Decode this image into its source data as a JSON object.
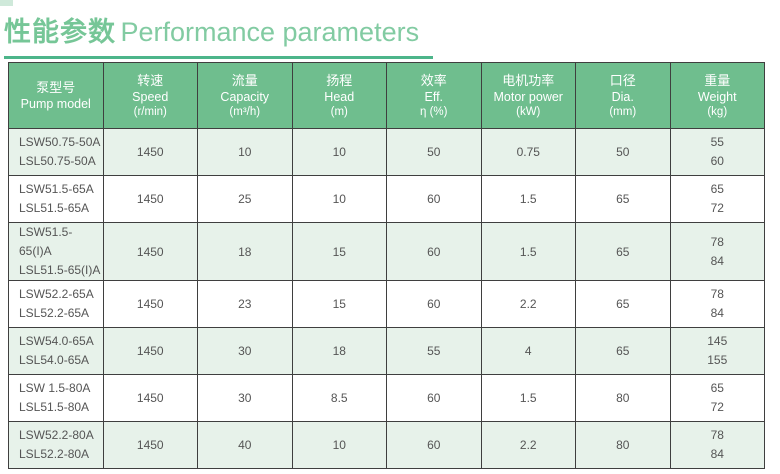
{
  "page": {
    "title_cn": "性能参数",
    "title_en": "Performance parameters",
    "accent_green": "#6fbe8e",
    "row_green": "#e7f2ea",
    "title_green": "#82cba2",
    "underline_green": "#4db58a"
  },
  "table": {
    "columns": [
      {
        "cn": "泵型号",
        "en": "Pump model",
        "unit": ""
      },
      {
        "cn": "转速",
        "en": "Speed",
        "unit": "(r/min)"
      },
      {
        "cn": "流量",
        "en": "Capacity",
        "unit": "(m³/h)"
      },
      {
        "cn": "扬程",
        "en": "Head",
        "unit": "(m)"
      },
      {
        "cn": "效率",
        "en": "Eff.",
        "unit": "η (%)"
      },
      {
        "cn": "电机功率",
        "en": "Motor power",
        "unit": "(kW)"
      },
      {
        "cn": "口径",
        "en": "Dia.",
        "unit": "(mm)"
      },
      {
        "cn": "重量",
        "en": "Weight",
        "unit": "(kg)"
      }
    ],
    "rows": [
      {
        "models": [
          "LSW50.75-50A",
          "LSL50.75-50A"
        ],
        "speed": "1450",
        "capacity": "10",
        "head": "10",
        "eff": "50",
        "power": "0.75",
        "dia": "50",
        "weights": [
          "55",
          "60"
        ]
      },
      {
        "models": [
          "LSW51.5-65A",
          "LSL51.5-65A"
        ],
        "speed": "1450",
        "capacity": "25",
        "head": "10",
        "eff": "60",
        "power": "1.5",
        "dia": "65",
        "weights": [
          "65",
          "72"
        ]
      },
      {
        "models": [
          "LSW51.5-65(I)A",
          "LSL51.5-65(I)A"
        ],
        "speed": "1450",
        "capacity": "18",
        "head": "15",
        "eff": "60",
        "power": "1.5",
        "dia": "65",
        "weights": [
          "78",
          "84"
        ]
      },
      {
        "models": [
          "LSW52.2-65A",
          "LSL52.2-65A"
        ],
        "speed": "1450",
        "capacity": "23",
        "head": "15",
        "eff": "60",
        "power": "2.2",
        "dia": "65",
        "weights": [
          "78",
          "84"
        ]
      },
      {
        "models": [
          "LSW54.0-65A",
          "LSL54.0-65A"
        ],
        "speed": "1450",
        "capacity": "30",
        "head": "18",
        "eff": "55",
        "power": "4",
        "dia": "65",
        "weights": [
          "145",
          "155"
        ]
      },
      {
        "models": [
          "LSW 1.5-80A",
          "LSL51.5-80A"
        ],
        "speed": "1450",
        "capacity": "30",
        "head": "8.5",
        "eff": "60",
        "power": "1.5",
        "dia": "80",
        "weights": [
          "65",
          "72"
        ]
      },
      {
        "models": [
          "LSW52.2-80A",
          "LSL52.2-80A"
        ],
        "speed": "1450",
        "capacity": "40",
        "head": "10",
        "eff": "60",
        "power": "2.2",
        "dia": "80",
        "weights": [
          "78",
          "84"
        ]
      }
    ]
  }
}
